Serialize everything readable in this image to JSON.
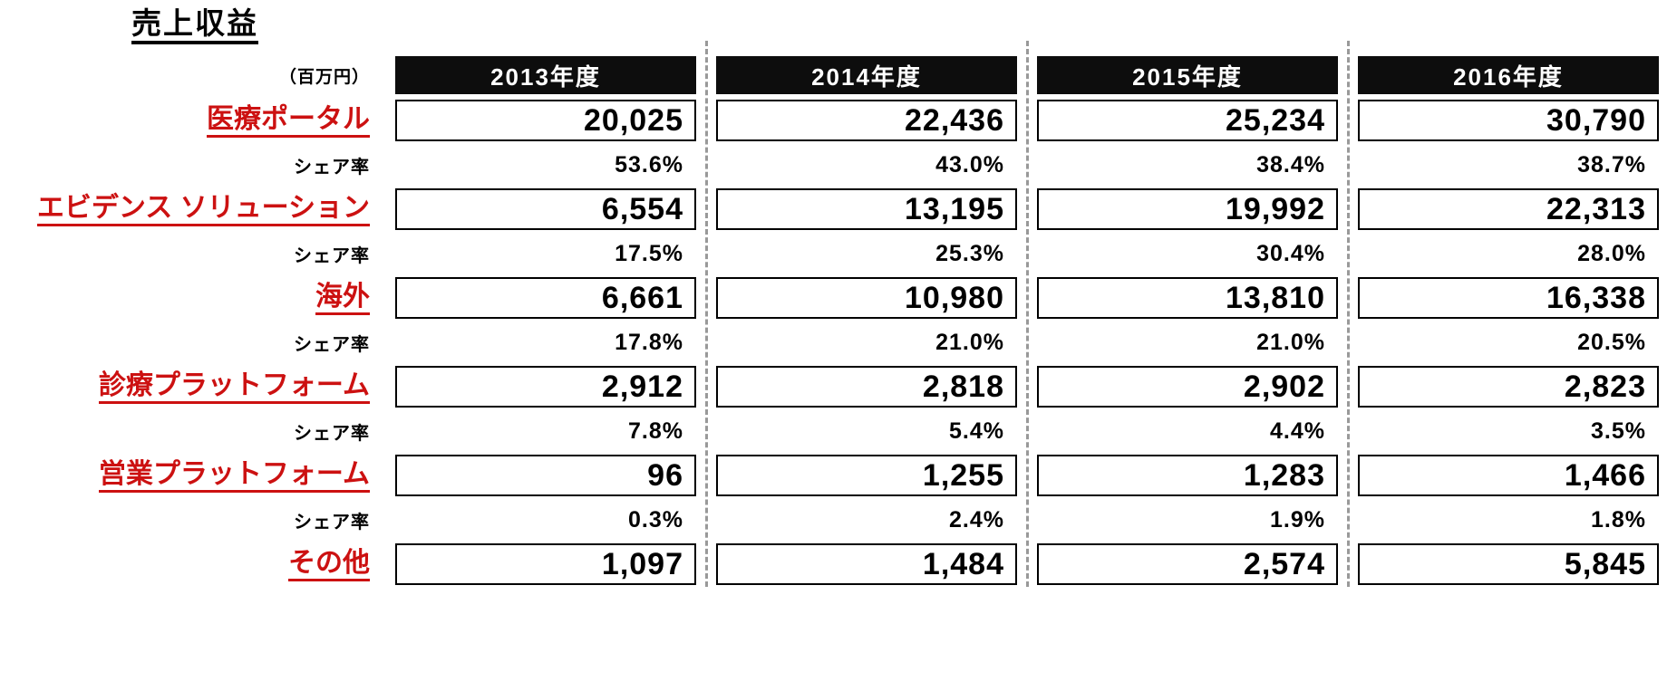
{
  "page": {
    "title": "売上収益",
    "unit_label": "（百万円）",
    "share_label": "シェア率"
  },
  "colors": {
    "accent_red": "#CC1111",
    "header_bg": "#0d0d0d",
    "dashed_divider": "#999999"
  },
  "columns": [
    "2013年度",
    "2014年度",
    "2015年度",
    "2016年度"
  ],
  "rows": [
    {
      "label": "医療ポータル",
      "values": [
        "20,025",
        "22,436",
        "25,234",
        "30,790"
      ],
      "shares": [
        "53.6%",
        "43.0%",
        "38.4%",
        "38.7%"
      ]
    },
    {
      "label": "エビデンス ソリューション",
      "values": [
        "6,554",
        "13,195",
        "19,992",
        "22,313"
      ],
      "shares": [
        "17.5%",
        "25.3%",
        "30.4%",
        "28.0%"
      ]
    },
    {
      "label": "海外",
      "values": [
        "6,661",
        "10,980",
        "13,810",
        "16,338"
      ],
      "shares": [
        "17.8%",
        "21.0%",
        "21.0%",
        "20.5%"
      ]
    },
    {
      "label": "診療プラットフォーム",
      "values": [
        "2,912",
        "2,818",
        "2,902",
        "2,823"
      ],
      "shares": [
        "7.8%",
        "5.4%",
        "4.4%",
        "3.5%"
      ]
    },
    {
      "label": "営業プラットフォーム",
      "values": [
        "96",
        "1,255",
        "1,283",
        "1,466"
      ],
      "shares": [
        "0.3%",
        "2.4%",
        "1.9%",
        "1.8%"
      ]
    },
    {
      "label": "その他",
      "values": [
        "1,097",
        "1,484",
        "2,574",
        "5,845"
      ],
      "shares": null
    }
  ],
  "chart_data": {
    "type": "table",
    "title": "売上収益",
    "unit": "百万円",
    "categories": [
      "2013年度",
      "2014年度",
      "2015年度",
      "2016年度"
    ],
    "series": [
      {
        "name": "医療ポータル",
        "values": [
          20025,
          22436,
          25234,
          30790
        ],
        "share_pct": [
          53.6,
          43.0,
          38.4,
          38.7
        ]
      },
      {
        "name": "エビデンス ソリューション",
        "values": [
          6554,
          13195,
          19992,
          22313
        ],
        "share_pct": [
          17.5,
          25.3,
          30.4,
          28.0
        ]
      },
      {
        "name": "海外",
        "values": [
          6661,
          10980,
          13810,
          16338
        ],
        "share_pct": [
          17.8,
          21.0,
          21.0,
          20.5
        ]
      },
      {
        "name": "診療プラットフォーム",
        "values": [
          2912,
          2818,
          2902,
          2823
        ],
        "share_pct": [
          7.8,
          5.4,
          4.4,
          3.5
        ]
      },
      {
        "name": "営業プラットフォーム",
        "values": [
          96,
          1255,
          1283,
          1466
        ],
        "share_pct": [
          0.3,
          2.4,
          1.9,
          1.8
        ]
      },
      {
        "name": "その他",
        "values": [
          1097,
          1484,
          2574,
          5845
        ],
        "share_pct": null
      }
    ]
  }
}
